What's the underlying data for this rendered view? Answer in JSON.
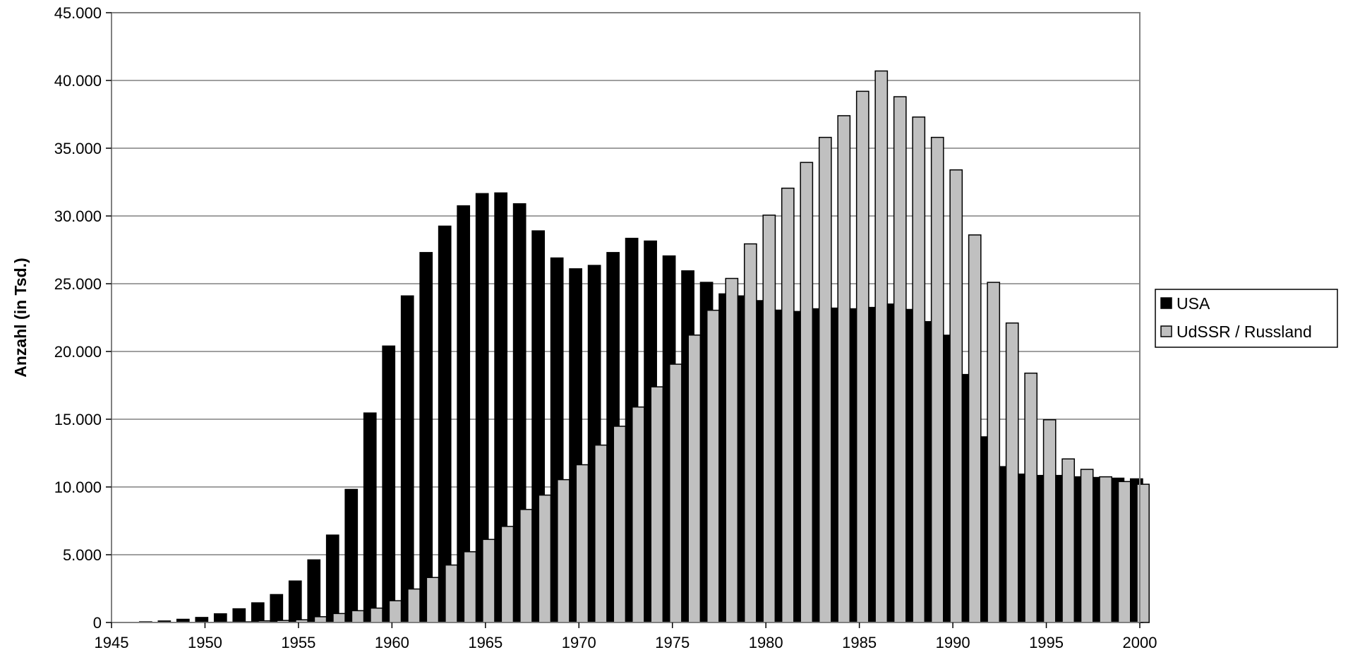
{
  "chart_data": {
    "type": "bar",
    "title": "",
    "xlabel": "",
    "ylabel": "Anzahl (in Tsd.)",
    "x_ticks": [
      "1945",
      "1950",
      "1955",
      "1960",
      "1965",
      "1970",
      "1975",
      "1980",
      "1985",
      "1990",
      "1995",
      "2000"
    ],
    "y_ticks": [
      "0",
      "5.000",
      "10.000",
      "15.000",
      "20.000",
      "25.000",
      "30.000",
      "35.000",
      "40.000",
      "45.000"
    ],
    "xlim": [
      1945,
      2000
    ],
    "ylim": [
      0,
      45000
    ],
    "grid": "horizontal",
    "legend_position": "right",
    "categories": [
      1946,
      1947,
      1948,
      1949,
      1950,
      1951,
      1952,
      1953,
      1954,
      1955,
      1956,
      1957,
      1958,
      1959,
      1960,
      1961,
      1962,
      1963,
      1964,
      1965,
      1966,
      1967,
      1968,
      1969,
      1970,
      1971,
      1972,
      1973,
      1974,
      1975,
      1976,
      1977,
      1978,
      1979,
      1980,
      1981,
      1982,
      1983,
      1984,
      1985,
      1986,
      1987,
      1988,
      1989,
      1990,
      1991,
      1992,
      1993,
      1994,
      1995,
      1996,
      1997,
      1998,
      1999,
      2000
    ],
    "series": [
      {
        "name": "USA",
        "color": "#000000",
        "values": [
          6,
          50,
          110,
          235,
          370,
          640,
          1010,
          1450,
          2060,
          3060,
          4620,
          6450,
          9820,
          15460,
          20400,
          24100,
          27300,
          29250,
          30750,
          31650,
          31700,
          30900,
          28900,
          26900,
          26100,
          26350,
          27300,
          28350,
          28150,
          27050,
          25950,
          25100,
          24250,
          24100,
          23750,
          23050,
          22950,
          23150,
          23200,
          23150,
          23250,
          23500,
          23100,
          22200,
          21200,
          18300,
          13700,
          11500,
          10950,
          10850,
          10850,
          10750,
          10700,
          10650,
          10600
        ]
      },
      {
        "name": "UdSSR / Russland",
        "color": "#c0c0c0",
        "values": [
          0,
          0,
          0,
          0,
          5,
          25,
          50,
          120,
          150,
          200,
          425,
          660,
          870,
          1060,
          1605,
          2470,
          3320,
          4240,
          5220,
          6130,
          7090,
          8340,
          9400,
          10540,
          11640,
          13090,
          14480,
          15900,
          17390,
          19060,
          21210,
          23040,
          25390,
          27940,
          30060,
          32050,
          33950,
          35800,
          37400,
          39200,
          40700,
          38800,
          37300,
          35800,
          33400,
          28600,
          25100,
          22100,
          18400,
          14960,
          12070,
          11300,
          10750,
          10400,
          10200
        ]
      }
    ]
  }
}
